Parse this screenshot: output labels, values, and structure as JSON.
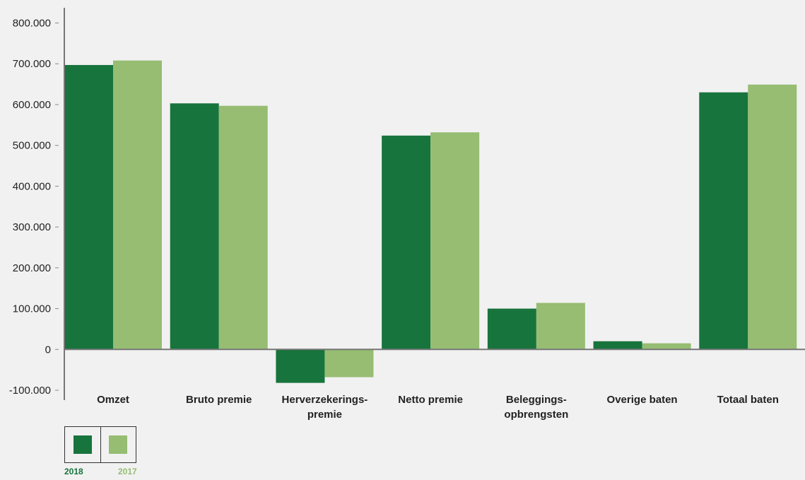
{
  "colors": {
    "s2018": "#17743c",
    "s2017": "#96bd72",
    "axis": "#777777"
  },
  "chart_data": {
    "type": "bar",
    "categories": [
      [
        "Omzet"
      ],
      [
        "Bruto premie"
      ],
      [
        "Herverzekerings-",
        "premie"
      ],
      [
        "Netto premie"
      ],
      [
        "Beleggings-",
        "opbrengsten"
      ],
      [
        "Overige baten"
      ],
      [
        "Totaal baten"
      ]
    ],
    "series": [
      {
        "name": "2018",
        "values": [
          697000,
          603000,
          -82000,
          524000,
          100000,
          20000,
          630000
        ]
      },
      {
        "name": "2017",
        "values": [
          708000,
          597000,
          -68000,
          532000,
          114000,
          15000,
          649000
        ]
      }
    ],
    "ylim": [
      -100000,
      800000
    ],
    "yticks": [
      -100000,
      0,
      100000,
      200000,
      300000,
      400000,
      500000,
      600000,
      700000,
      800000
    ],
    "ytick_labels": [
      "-100.000",
      "0",
      "100.000",
      "200.000",
      "300.000",
      "400.000",
      "500.000",
      "600.000",
      "700.000",
      "800.000"
    ],
    "legend_position": "bottom-left"
  },
  "legend": {
    "label_2018": "2018",
    "label_2017": "2017"
  }
}
